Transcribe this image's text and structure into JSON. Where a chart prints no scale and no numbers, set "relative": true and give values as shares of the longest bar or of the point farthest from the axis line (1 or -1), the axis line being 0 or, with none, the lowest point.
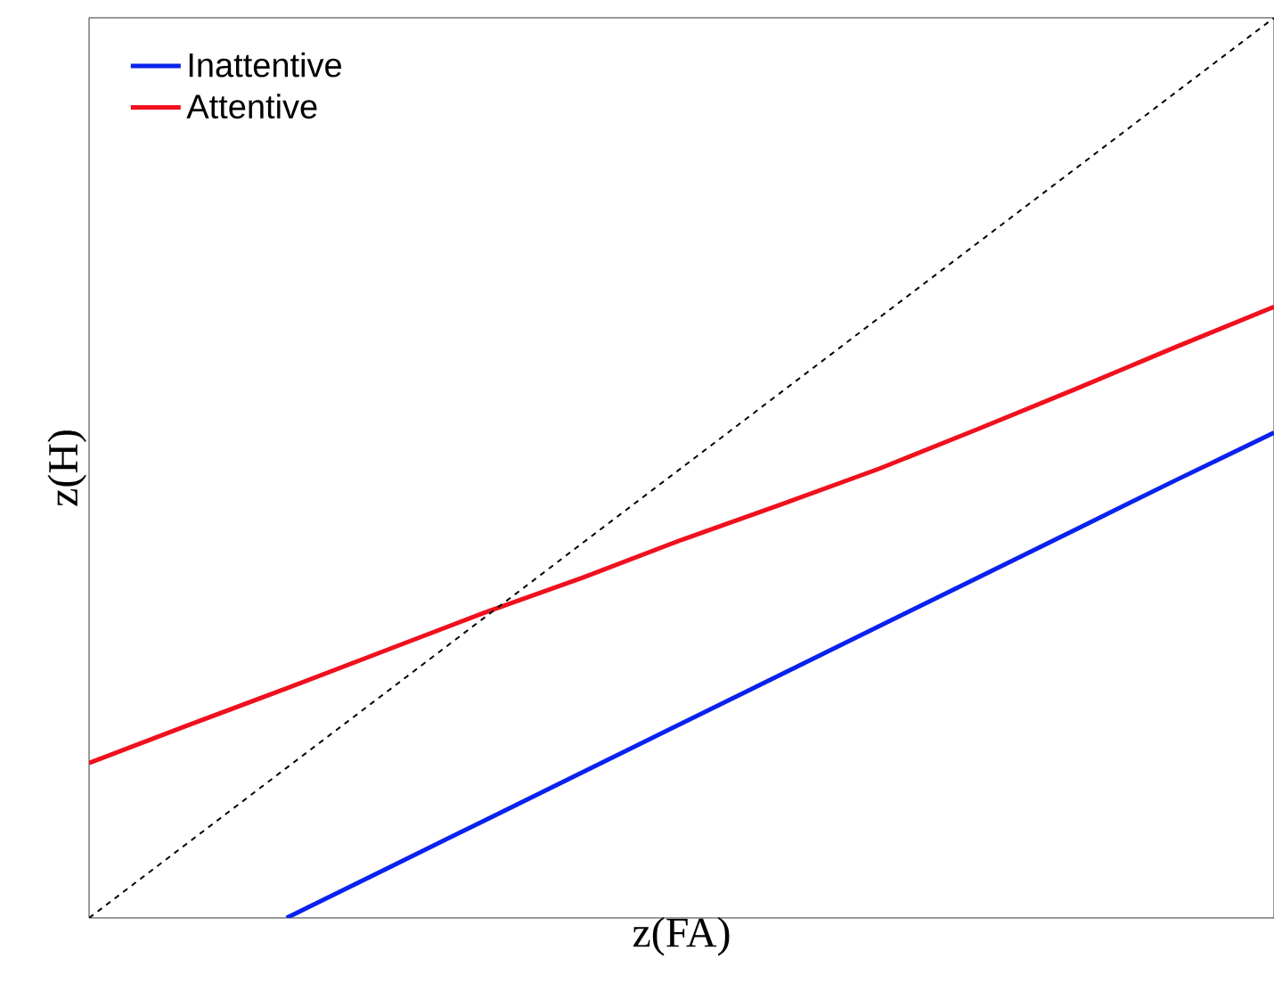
{
  "chart_data": {
    "type": "line",
    "relative": true,
    "xlabel": "z(FA)",
    "ylabel": "z(H)",
    "legend": "top left",
    "marker": "none",
    "categories": [
      null,
      null,
      null,
      null,
      null,
      null,
      null,
      null,
      null,
      null,
      null,
      null,
      null
    ],
    "series": [
      {
        "name": "Inattentive",
        "color": "#0a22ee",
        "line_style": "solid",
        "values": [
          null,
          null,
          0,
          0.054,
          0.108,
          0.162,
          0.216,
          0.27,
          0.324,
          0.378,
          0.432,
          0.486,
          0.539
        ]
      },
      {
        "name": "Attentive",
        "color": "#f0101e",
        "line_style": "solid",
        "values": [
          0.172,
          0.214,
          0.255,
          0.297,
          0.339,
          0.378,
          0.42,
          0.459,
          0.499,
          0.543,
          0.588,
          0.634,
          0.679
        ]
      },
      {
        "color": "#000000",
        "line_style": "dashed",
        "values": [
          0,
          0.0833,
          0.1667,
          0.25,
          0.3333,
          0.4167,
          0.5,
          0.5833,
          0.6667,
          0.75,
          0.8333,
          0.9167,
          1
        ]
      }
    ]
  }
}
